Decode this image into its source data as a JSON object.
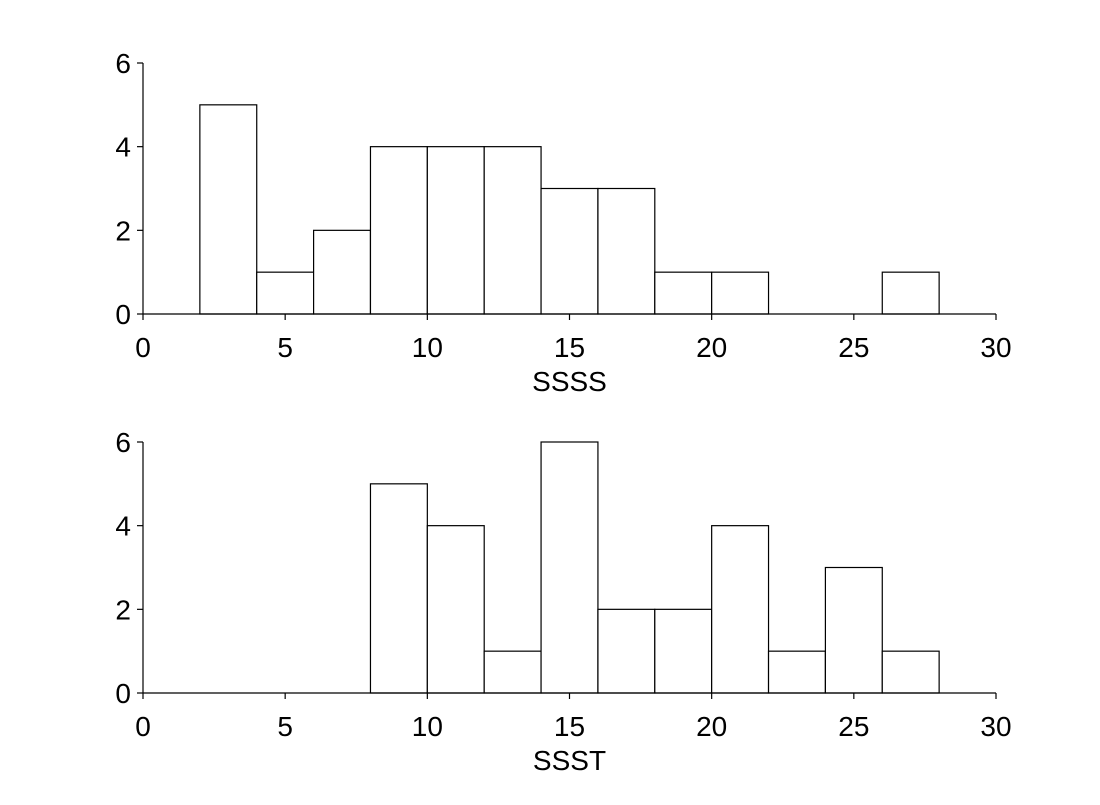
{
  "chart_data": [
    {
      "type": "bar",
      "title": "",
      "xlabel": "SSSS",
      "ylabel": "",
      "xlim": [
        0,
        30
      ],
      "ylim": [
        0,
        6
      ],
      "xticks": [
        "0",
        "5",
        "10",
        "15",
        "20",
        "25",
        "30"
      ],
      "yticks": [
        "0",
        "2",
        "4",
        "6"
      ],
      "grid": false,
      "bins": [
        {
          "x0": 2,
          "x1": 4,
          "count": 5
        },
        {
          "x0": 4,
          "x1": 6,
          "count": 1
        },
        {
          "x0": 6,
          "x1": 8,
          "count": 2
        },
        {
          "x0": 8,
          "x1": 10,
          "count": 4
        },
        {
          "x0": 10,
          "x1": 12,
          "count": 4
        },
        {
          "x0": 12,
          "x1": 14,
          "count": 4
        },
        {
          "x0": 14,
          "x1": 16,
          "count": 3
        },
        {
          "x0": 16,
          "x1": 18,
          "count": 3
        },
        {
          "x0": 18,
          "x1": 20,
          "count": 1
        },
        {
          "x0": 20,
          "x1": 22,
          "count": 1
        },
        {
          "x0": 26,
          "x1": 28,
          "count": 1
        }
      ]
    },
    {
      "type": "bar",
      "title": "",
      "xlabel": "SSST",
      "ylabel": "",
      "xlim": [
        0,
        30
      ],
      "ylim": [
        0,
        6
      ],
      "xticks": [
        "0",
        "5",
        "10",
        "15",
        "20",
        "25",
        "30"
      ],
      "yticks": [
        "0",
        "2",
        "4",
        "6"
      ],
      "grid": false,
      "bins": [
        {
          "x0": 8,
          "x1": 10,
          "count": 5
        },
        {
          "x0": 10,
          "x1": 12,
          "count": 4
        },
        {
          "x0": 12,
          "x1": 14,
          "count": 1
        },
        {
          "x0": 14,
          "x1": 16,
          "count": 6
        },
        {
          "x0": 16,
          "x1": 18,
          "count": 2
        },
        {
          "x0": 18,
          "x1": 20,
          "count": 2
        },
        {
          "x0": 20,
          "x1": 22,
          "count": 4
        },
        {
          "x0": 22,
          "x1": 24,
          "count": 1
        },
        {
          "x0": 24,
          "x1": 26,
          "count": 3
        },
        {
          "x0": 26,
          "x1": 28,
          "count": 1
        }
      ]
    }
  ]
}
